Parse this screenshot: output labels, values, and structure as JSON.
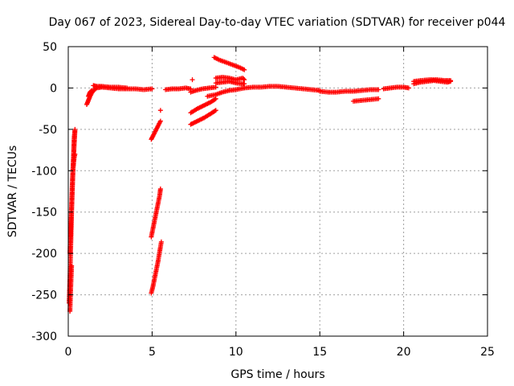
{
  "chart_data": {
    "type": "scatter",
    "title": "Day 067 of 2023, Sidereal Day-to-day VTEC variation (SDTVAR) for receiver p044",
    "xlabel": "GPS time / hours",
    "ylabel": "SDTVAR / TECUs",
    "xlim": [
      0,
      25
    ],
    "ylim": [
      -300,
      50
    ],
    "xticks": [
      0,
      5,
      10,
      15,
      20,
      25
    ],
    "yticks": [
      -300,
      -250,
      -200,
      -150,
      -100,
      -50,
      0,
      50
    ],
    "xtick_labels": [
      "0",
      "5",
      "10",
      "15",
      "20",
      "25"
    ],
    "ytick_labels": [
      "-300",
      "-250",
      "-200",
      "-150",
      "-100",
      "-50",
      "0",
      "50"
    ],
    "grid": true,
    "marker": "plus",
    "color": "#ff0000",
    "segments": [
      {
        "x": [
          0.05,
          0.1,
          0.15,
          0.2,
          0.25,
          0.3,
          0.35,
          0.4
        ],
        "y": [
          -260,
          -230,
          -190,
          -150,
          -120,
          -90,
          -60,
          -50
        ]
      },
      {
        "x": [
          0.1,
          0.15,
          0.2,
          0.25,
          0.3,
          0.35,
          0.4
        ],
        "y": [
          -200,
          -170,
          -140,
          -110,
          -90,
          -70,
          -52
        ]
      },
      {
        "x": [
          0.1,
          0.15,
          0.2
        ],
        "y": [
          -270,
          -240,
          -215
        ]
      },
      {
        "x": [
          0.3,
          0.35,
          0.4
        ],
        "y": [
          -95,
          -85,
          -80
        ]
      },
      {
        "x": [
          1.1,
          1.2,
          1.3,
          1.4,
          1.5,
          1.7,
          2.0,
          2.5,
          3.0,
          3.5,
          4.0,
          4.5,
          5.0
        ],
        "y": [
          -20,
          -15,
          -10,
          -6,
          -3,
          0,
          1,
          0,
          -1,
          -1,
          -1,
          -2,
          -1
        ]
      },
      {
        "x": [
          1.5,
          1.7,
          2.0,
          2.5,
          3.0,
          3.5
        ],
        "y": [
          3,
          2,
          2,
          1,
          1,
          0
        ]
      },
      {
        "x": [
          1.2,
          1.3,
          1.4
        ],
        "y": [
          -10,
          -5,
          -3
        ]
      },
      {
        "x": [
          4.95,
          5.05,
          5.15,
          5.25,
          5.35,
          5.5
        ],
        "y": [
          -62,
          -58,
          -54,
          -50,
          -46,
          -40
        ]
      },
      {
        "x": [
          5.5
        ],
        "y": [
          -27
        ]
      },
      {
        "x": [
          4.95,
          5.05,
          5.15,
          5.25,
          5.35,
          5.45,
          5.5
        ],
        "y": [
          -180,
          -170,
          -160,
          -150,
          -140,
          -130,
          -122
        ]
      },
      {
        "x": [
          4.95,
          5.05,
          5.15,
          5.25,
          5.35,
          5.45,
          5.55
        ],
        "y": [
          -248,
          -240,
          -230,
          -220,
          -210,
          -198,
          -186
        ]
      },
      {
        "x": [
          5.8,
          6.2,
          6.6,
          7.0,
          7.3
        ],
        "y": [
          -2,
          -1,
          -1,
          0,
          -1
        ]
      },
      {
        "x": [
          7.3,
          7.6,
          8.0,
          8.4,
          8.8
        ],
        "y": [
          -5,
          -3,
          -1,
          0,
          1
        ]
      },
      {
        "x": [
          7.4
        ],
        "y": [
          10
        ]
      },
      {
        "x": [
          7.3,
          7.7,
          8.1,
          8.5,
          8.8
        ],
        "y": [
          -44,
          -40,
          -36,
          -31,
          -27
        ]
      },
      {
        "x": [
          7.3,
          7.7,
          8.1,
          8.5,
          8.8
        ],
        "y": [
          -30,
          -25,
          -21,
          -17,
          -13
        ]
      },
      {
        "x": [
          8.7,
          9.0,
          9.4,
          9.8,
          10.2,
          10.5
        ],
        "y": [
          37,
          34,
          31,
          28,
          25,
          22
        ]
      },
      {
        "x": [
          8.8,
          9.2,
          9.6,
          10.0,
          10.4,
          10.5
        ],
        "y": [
          12,
          13,
          12,
          10,
          12,
          10
        ]
      },
      {
        "x": [
          8.8,
          9.2,
          9.6,
          10.0,
          10.4,
          10.5
        ],
        "y": [
          6,
          7,
          8,
          6,
          5,
          5
        ]
      },
      {
        "x": [
          8.3,
          8.8,
          9.2,
          9.6,
          10.0,
          10.5
        ],
        "y": [
          -10,
          -8,
          -5,
          -3,
          -2,
          0
        ]
      },
      {
        "x": [
          10.5,
          11.0,
          11.5,
          12.0,
          12.5,
          13.0,
          13.5,
          14.0,
          14.5,
          15.0
        ],
        "y": [
          0,
          1,
          1,
          2,
          2,
          1,
          0,
          -1,
          -2,
          -3
        ]
      },
      {
        "x": [
          15.0,
          15.5,
          16.0,
          16.5,
          17.0,
          17.5,
          18.0,
          18.5
        ],
        "y": [
          -4,
          -5,
          -5,
          -4,
          -4,
          -3,
          -2,
          -2
        ]
      },
      {
        "x": [
          17.0,
          17.5,
          18.0,
          18.5
        ],
        "y": [
          -16,
          -15,
          -14,
          -13
        ]
      },
      {
        "x": [
          18.8,
          19.2,
          19.6,
          20.0,
          20.3
        ],
        "y": [
          -1,
          0,
          1,
          1,
          0
        ]
      },
      {
        "x": [
          20.6,
          21.0,
          21.4,
          21.8,
          22.2,
          22.6,
          22.8
        ],
        "y": [
          5,
          7,
          8,
          9,
          8,
          7,
          8
        ]
      },
      {
        "x": [
          20.6,
          21.0,
          21.5,
          22.0,
          22.5,
          22.8
        ],
        "y": [
          8,
          9,
          10,
          10,
          9,
          9
        ]
      }
    ]
  }
}
